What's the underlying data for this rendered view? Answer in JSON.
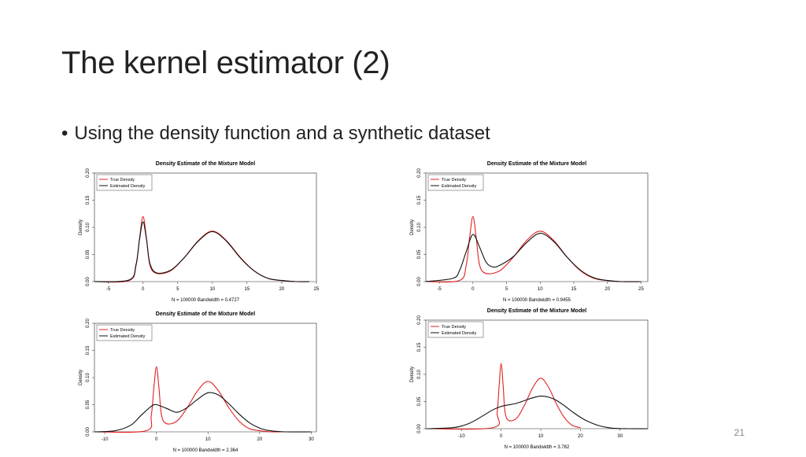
{
  "slide": {
    "title": "The kernel estimator (2)",
    "bullet": "Using the density function and a synthetic dataset",
    "page_number": "21"
  },
  "colors": {
    "true_density": "#e02020",
    "estimated_density": "#111111",
    "axis": "#444444"
  },
  "chart_data": [
    {
      "type": "line",
      "title": "Density Estimate of the Mixture Model",
      "xlabel": "N = 100000   Bandwidth = 0.4727",
      "ylabel": "Density",
      "xlim": [
        -7,
        25
      ],
      "ylim": [
        0,
        0.2
      ],
      "xticks": [
        "-5",
        "0",
        "5",
        "10",
        "15",
        "20",
        "25"
      ],
      "yticks": [
        "0.00",
        "0.05",
        "0.10",
        "0.15",
        "0.20"
      ],
      "legend": [
        "True Density",
        "Estimated Density"
      ],
      "legend_position": "top-left",
      "series": [
        {
          "name": "True Density",
          "x": [
            -7,
            -2,
            -1,
            -0.5,
            0,
            0.5,
            1,
            2,
            4,
            6,
            8,
            10,
            12,
            14,
            16,
            18,
            20,
            22,
            24
          ],
          "y": [
            0,
            0.002,
            0.03,
            0.08,
            0.12,
            0.08,
            0.03,
            0.015,
            0.02,
            0.045,
            0.076,
            0.093,
            0.076,
            0.045,
            0.02,
            0.006,
            0.002,
            0,
            0
          ]
        },
        {
          "name": "Estimated Density",
          "x": [
            -7,
            -2,
            -1,
            -0.5,
            0,
            0.5,
            1,
            2,
            4,
            6,
            8,
            10,
            12,
            14,
            16,
            18,
            20,
            22,
            24
          ],
          "y": [
            0,
            0.003,
            0.032,
            0.078,
            0.11,
            0.078,
            0.033,
            0.016,
            0.021,
            0.045,
            0.075,
            0.092,
            0.075,
            0.044,
            0.02,
            0.006,
            0.002,
            0,
            0
          ]
        }
      ]
    },
    {
      "type": "line",
      "title": "Density Estimate of the Mixture Model",
      "xlabel": "N = 100000   Bandwidth = 0.9455",
      "ylabel": "Density",
      "xlim": [
        -7,
        26
      ],
      "ylim": [
        0,
        0.2
      ],
      "xticks": [
        "-5",
        "0",
        "5",
        "10",
        "15",
        "20",
        "25"
      ],
      "yticks": [
        "0.00",
        "0.05",
        "0.10",
        "0.15",
        "0.20"
      ],
      "legend": [
        "True Density",
        "Estimated Density"
      ],
      "legend_position": "top-left",
      "series": [
        {
          "name": "True Density",
          "x": [
            -7,
            -2,
            -1,
            -0.5,
            0,
            0.5,
            1,
            2,
            4,
            6,
            8,
            10,
            12,
            14,
            16,
            18,
            20,
            22,
            25
          ],
          "y": [
            0,
            0.002,
            0.03,
            0.08,
            0.12,
            0.08,
            0.03,
            0.015,
            0.02,
            0.045,
            0.076,
            0.093,
            0.076,
            0.045,
            0.02,
            0.006,
            0.002,
            0,
            0
          ]
        },
        {
          "name": "Estimated Density",
          "x": [
            -7,
            -3,
            -2,
            -1,
            0,
            1,
            2,
            3,
            4,
            6,
            8,
            10,
            12,
            14,
            16,
            18,
            20,
            22,
            25
          ],
          "y": [
            0,
            0.006,
            0.02,
            0.055,
            0.087,
            0.063,
            0.035,
            0.027,
            0.03,
            0.046,
            0.072,
            0.089,
            0.074,
            0.045,
            0.021,
            0.007,
            0.002,
            0,
            0
          ]
        }
      ]
    },
    {
      "type": "line",
      "title": "Density Estimate of the Mixture Model",
      "xlabel": "N = 100000   Bandwidth = 2.364",
      "ylabel": "Density",
      "xlim": [
        -12,
        31
      ],
      "ylim": [
        0,
        0.2
      ],
      "xticks": [
        "-10",
        "0",
        "10",
        "20",
        "30"
      ],
      "yticks": [
        "0.00",
        "0.05",
        "0.10",
        "0.15",
        "0.20"
      ],
      "legend": [
        "True Density",
        "Estimated Density"
      ],
      "legend_position": "top-left",
      "series": [
        {
          "name": "True Density",
          "x": [
            -12,
            -2,
            -1,
            -0.5,
            0,
            0.5,
            1,
            2,
            4,
            6,
            8,
            10,
            12,
            14,
            16,
            18,
            20,
            22,
            24
          ],
          "y": [
            0,
            0.002,
            0.03,
            0.08,
            0.12,
            0.08,
            0.03,
            0.015,
            0.02,
            0.045,
            0.076,
            0.093,
            0.076,
            0.045,
            0.02,
            0.006,
            0.002,
            0,
            0
          ]
        },
        {
          "name": "Estimated Density",
          "x": [
            -12,
            -8,
            -5,
            -3,
            -1,
            0,
            2,
            4,
            6,
            8,
            10,
            12,
            14,
            16,
            18,
            20,
            22,
            25,
            30
          ],
          "y": [
            0,
            0.002,
            0.012,
            0.03,
            0.047,
            0.05,
            0.043,
            0.036,
            0.045,
            0.06,
            0.072,
            0.068,
            0.052,
            0.033,
            0.017,
            0.007,
            0.002,
            0,
            0
          ]
        }
      ]
    },
    {
      "type": "line",
      "title": "Density Estimate of the Mixture Model",
      "xlabel": "N = 100000   Bandwidth = 3.782",
      "ylabel": "Density",
      "xlim": [
        -19,
        37
      ],
      "ylim": [
        0,
        0.2
      ],
      "xticks": [
        "-10",
        "0",
        "10",
        "20",
        "30"
      ],
      "yticks": [
        "0.00",
        "0.05",
        "0.10",
        "0.15",
        "0.20"
      ],
      "legend": [
        "True Density",
        "Estimated Density"
      ],
      "legend_position": "top-left",
      "series": [
        {
          "name": "True Density",
          "x": [
            -19,
            -2,
            -1,
            -0.5,
            0,
            0.5,
            1,
            2,
            4,
            6,
            8,
            10,
            12,
            14,
            16,
            18,
            20
          ],
          "y": [
            0,
            0.002,
            0.03,
            0.08,
            0.12,
            0.08,
            0.03,
            0.015,
            0.02,
            0.045,
            0.076,
            0.093,
            0.076,
            0.045,
            0.02,
            0.006,
            0.002
          ]
        },
        {
          "name": "Estimated Density",
          "x": [
            -19,
            -12,
            -8,
            -5,
            -2,
            0,
            2,
            4,
            6,
            8,
            10,
            12,
            14,
            16,
            18,
            20,
            22,
            25,
            28,
            32,
            37
          ],
          "y": [
            0,
            0.002,
            0.01,
            0.022,
            0.035,
            0.041,
            0.044,
            0.047,
            0.052,
            0.057,
            0.06,
            0.058,
            0.052,
            0.042,
            0.031,
            0.021,
            0.013,
            0.005,
            0.001,
            0,
            0
          ]
        }
      ]
    }
  ]
}
